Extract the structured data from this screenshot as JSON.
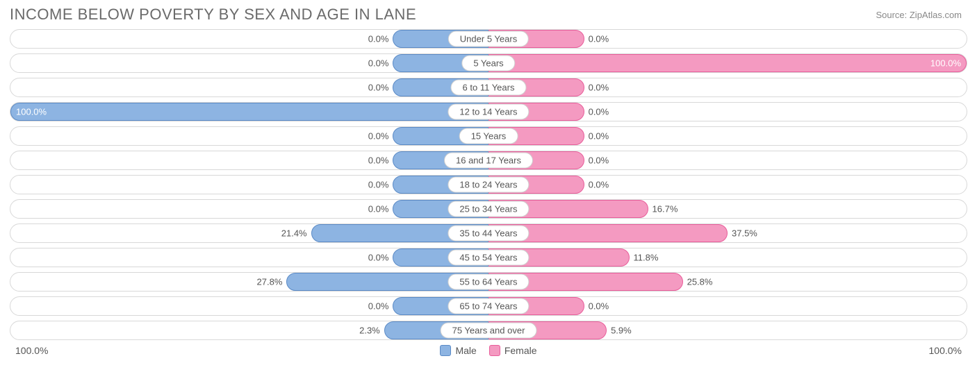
{
  "title": "INCOME BELOW POVERTY BY SEX AND AGE IN LANE",
  "source": "Source: ZipAtlas.com",
  "axis_left": "100.0%",
  "axis_right": "100.0%",
  "legend": {
    "male": "Male",
    "female": "Female"
  },
  "colors": {
    "male_fill": "#8db4e2",
    "male_border": "#5a8ac6",
    "female_fill": "#f49ac1",
    "female_border": "#e85d9a",
    "row_border": "#d8d8d8",
    "text": "#555555",
    "title": "#6a6a6a",
    "source": "#888888",
    "bg": "#ffffff"
  },
  "chart": {
    "type": "diverging-bar",
    "min_bar_pct": 20,
    "rows": [
      {
        "label": "Under 5 Years",
        "male": 0.0,
        "female": 0.0
      },
      {
        "label": "5 Years",
        "male": 0.0,
        "female": 100.0
      },
      {
        "label": "6 to 11 Years",
        "male": 0.0,
        "female": 0.0
      },
      {
        "label": "12 to 14 Years",
        "male": 100.0,
        "female": 0.0
      },
      {
        "label": "15 Years",
        "male": 0.0,
        "female": 0.0
      },
      {
        "label": "16 and 17 Years",
        "male": 0.0,
        "female": 0.0
      },
      {
        "label": "18 to 24 Years",
        "male": 0.0,
        "female": 0.0
      },
      {
        "label": "25 to 34 Years",
        "male": 0.0,
        "female": 16.7
      },
      {
        "label": "35 to 44 Years",
        "male": 21.4,
        "female": 37.5
      },
      {
        "label": "45 to 54 Years",
        "male": 0.0,
        "female": 11.8
      },
      {
        "label": "55 to 64 Years",
        "male": 27.8,
        "female": 25.8
      },
      {
        "label": "65 to 74 Years",
        "male": 0.0,
        "female": 0.0
      },
      {
        "label": "75 Years and over",
        "male": 2.3,
        "female": 5.9
      }
    ]
  }
}
